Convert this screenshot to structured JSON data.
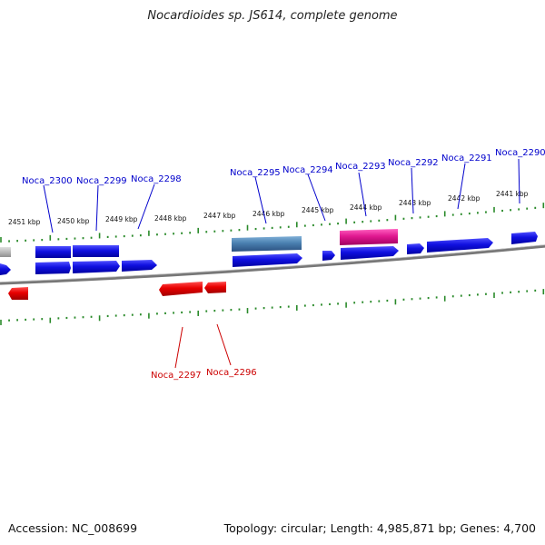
{
  "title": "Nocardioides sp. JS614, complete genome",
  "footer": {
    "accession": "Accession: NC_008699",
    "summary": "Topology: circular; Length: 4,985,871 bp; Genes: 4,700"
  },
  "colors": {
    "forward_gene": "#1010e0",
    "reverse_gene": "#e80000",
    "highlight_pink": "#e01890",
    "highlight_steel": "#4a80b0",
    "tick": "#2a8a2a",
    "backbone": "#888888",
    "forward_label": "#0000cc",
    "reverse_label": "#cc0000"
  },
  "kbp_labels": [
    "2451 kbp",
    "2450 kbp",
    "2449 kbp",
    "2448 kbp",
    "2447 kbp",
    "2446 kbp",
    "2445 kbp",
    "2444 kbp",
    "2443 kbp",
    "2442 kbp",
    "2441 kbp"
  ],
  "gene_labels_top": [
    "Noca_2300",
    "Noca_2299",
    "Noca_2298",
    "Noca_2295",
    "Noca_2294",
    "Noca_2293",
    "Noca_2292",
    "Noca_2291",
    "Noca_2290"
  ],
  "gene_labels_bottom": [
    "Noca_2297",
    "Noca_2296"
  ]
}
